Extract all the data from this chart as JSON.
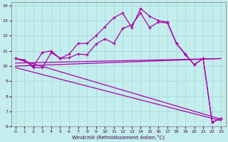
{
  "xlabel": "Windchill (Refroidissement éolien,°C)",
  "xlim": [
    -0.5,
    23.5
  ],
  "ylim": [
    6,
    14.2
  ],
  "xticks": [
    0,
    1,
    2,
    3,
    4,
    5,
    6,
    7,
    8,
    9,
    10,
    11,
    12,
    13,
    14,
    15,
    16,
    17,
    18,
    19,
    20,
    21,
    22,
    23
  ],
  "yticks": [
    6,
    7,
    8,
    9,
    10,
    11,
    12,
    13,
    14
  ],
  "bg_color": "#c4eeee",
  "line_color": "#aa00aa",
  "grid_color": "#a8d8d8",
  "line1_x": [
    0,
    1,
    2,
    3,
    4,
    5,
    6,
    7,
    8,
    9,
    10,
    11,
    12,
    13,
    14,
    15,
    16,
    17,
    18,
    19,
    20,
    21,
    22,
    23
  ],
  "line1_y": [
    10.5,
    10.4,
    10.0,
    10.9,
    11.0,
    10.5,
    10.8,
    11.5,
    11.5,
    12.0,
    12.6,
    13.2,
    13.5,
    12.55,
    13.8,
    13.3,
    13.0,
    12.9,
    11.5,
    10.8,
    10.1,
    10.5,
    6.3,
    6.55
  ],
  "line2_x": [
    0,
    1,
    2,
    3,
    4,
    5,
    6,
    7,
    8,
    9,
    10,
    11,
    12,
    13,
    14,
    15,
    16,
    17,
    18,
    19,
    20,
    21,
    22,
    23
  ],
  "line2_y": [
    10.5,
    10.4,
    9.9,
    9.9,
    10.9,
    10.5,
    10.55,
    10.8,
    10.75,
    11.45,
    11.8,
    11.5,
    12.5,
    12.7,
    13.5,
    12.55,
    12.9,
    12.85,
    11.5,
    10.75,
    10.1,
    10.5,
    6.3,
    6.55
  ],
  "line3_x": [
    0,
    23
  ],
  "line3_y": [
    10.0,
    10.5
  ],
  "line4_x": [
    0,
    23
  ],
  "line4_y": [
    10.2,
    10.5
  ],
  "line5_x": [
    0,
    23
  ],
  "line5_y": [
    10.5,
    6.5
  ],
  "line6_x": [
    0,
    23
  ],
  "line6_y": [
    9.9,
    6.4
  ]
}
